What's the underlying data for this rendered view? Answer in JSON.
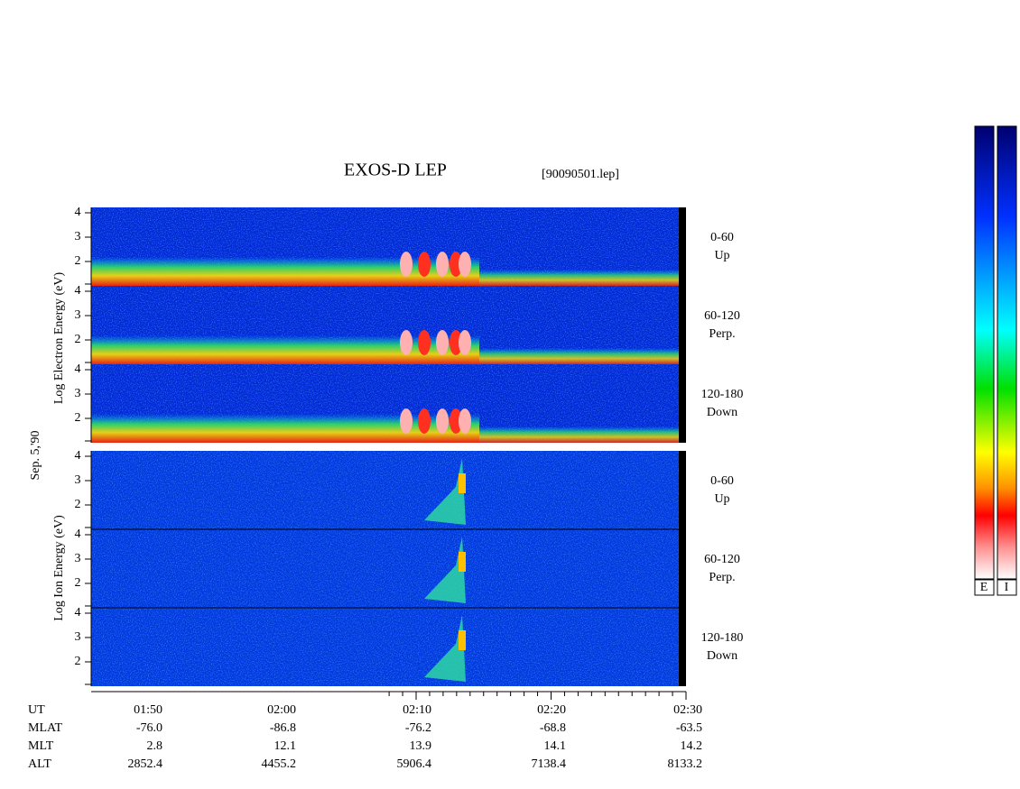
{
  "header": {
    "title": "EXOS-D LEP",
    "file": "[90090501.lep]"
  },
  "date": "Sep. 5,'90",
  "electron": {
    "axis_label": "Log Electron Energy (eV)",
    "ticks": [
      "4",
      "3",
      "2"
    ],
    "panels": [
      {
        "range": "0-60",
        "direction": "Up"
      },
      {
        "range": "60-120",
        "direction": "Perp."
      },
      {
        "range": "120-180",
        "direction": "Down"
      }
    ]
  },
  "ion": {
    "axis_label": "Log Ion Energy (eV)",
    "ticks": [
      "4",
      "3",
      "2"
    ],
    "panels": [
      {
        "range": "0-60",
        "direction": "Up"
      },
      {
        "range": "60-120",
        "direction": "Perp."
      },
      {
        "range": "120-180",
        "direction": "Down"
      }
    ]
  },
  "time_table": {
    "rows": [
      {
        "label": "UT",
        "values": [
          "01:50",
          "02:00",
          "02:10",
          "02:20",
          "02:30"
        ]
      },
      {
        "label": "MLAT",
        "values": [
          "-76.0",
          "-86.8",
          "-76.2",
          "-68.8",
          "-63.5"
        ]
      },
      {
        "label": "MLT",
        "values": [
          "2.8",
          "12.1",
          "13.9",
          "14.1",
          "14.2"
        ]
      },
      {
        "label": "ALT",
        "values": [
          "2852.4",
          "4455.2",
          "5906.4",
          "7138.4",
          "8133.2"
        ]
      }
    ]
  },
  "colorbars": [
    "E",
    "I"
  ]
}
